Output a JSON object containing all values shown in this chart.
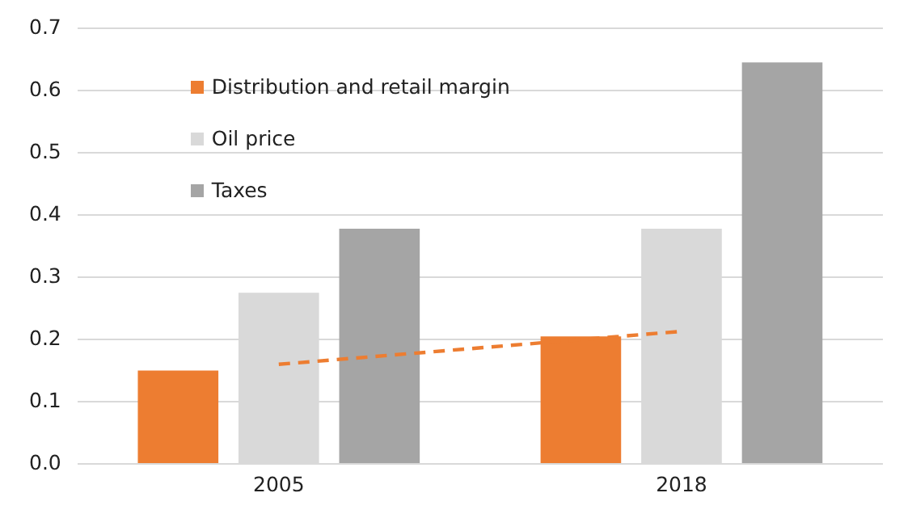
{
  "chart_data": {
    "type": "bar",
    "categories": [
      "2005",
      "2018"
    ],
    "series": [
      {
        "name": "Distribution and retail margin",
        "color": "#ed7d31",
        "values": [
          0.15,
          0.205
        ]
      },
      {
        "name": "Oil price",
        "color": "#d9d9d9",
        "values": [
          0.275,
          0.378
        ]
      },
      {
        "name": "Taxes",
        "color": "#a5a5a5",
        "values": [
          0.378,
          0.645
        ]
      },
      {
        "type": "line",
        "color": "#ed7d31",
        "values": [
          0.16,
          0.213
        ],
        "line_style": "dashed"
      }
    ],
    "ylim": [
      0,
      0.7
    ],
    "yticks": [
      {
        "value": 0,
        "label": "0.0"
      },
      0.1,
      0.2,
      0.3,
      0.4,
      0.5,
      0.6,
      0.7
    ],
    "grid": "y",
    "legend": "top left"
  }
}
